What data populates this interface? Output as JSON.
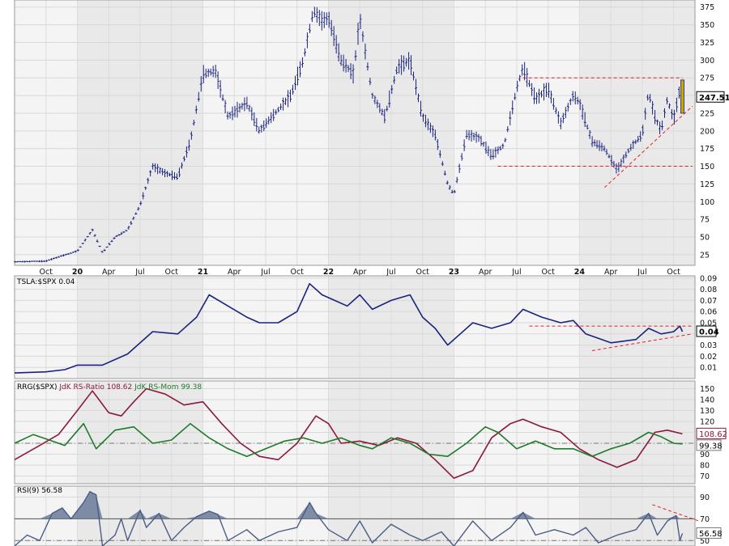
{
  "chart_data": [
    {
      "type": "bar",
      "subtype": "ohlc",
      "panel": "price",
      "x_tick_labels": [
        "Oct",
        "20",
        "Apr",
        "Jul",
        "Oct",
        "21",
        "Apr",
        "Jul",
        "Oct",
        "22",
        "Apr",
        "Jul",
        "Oct",
        "23",
        "Apr",
        "Jul",
        "Oct",
        "24",
        "Apr",
        "Jul",
        "Oct"
      ],
      "x_tick_months": [
        2019.75,
        2020.0,
        2020.25,
        2020.5,
        2020.75,
        2021.0,
        2021.25,
        2021.5,
        2021.75,
        2022.0,
        2022.25,
        2022.5,
        2022.75,
        2023.0,
        2023.25,
        2023.5,
        2023.75,
        2024.0,
        2024.25,
        2024.5,
        2024.75
      ],
      "y_ticks": [
        25,
        50,
        75,
        100,
        125,
        150,
        175,
        200,
        225,
        250,
        275,
        300,
        325,
        350,
        375
      ],
      "ylim": [
        10,
        385
      ],
      "last_value_label": "247.51",
      "close_series": [
        {
          "t": 2019.5,
          "v": 15
        },
        {
          "t": 2019.75,
          "v": 16
        },
        {
          "t": 2019.85,
          "v": 22
        },
        {
          "t": 2020.0,
          "v": 30
        },
        {
          "t": 2020.08,
          "v": 50
        },
        {
          "t": 2020.12,
          "v": 60
        },
        {
          "t": 2020.2,
          "v": 28
        },
        {
          "t": 2020.3,
          "v": 50
        },
        {
          "t": 2020.4,
          "v": 60
        },
        {
          "t": 2020.5,
          "v": 95
        },
        {
          "t": 2020.6,
          "v": 150
        },
        {
          "t": 2020.7,
          "v": 140
        },
        {
          "t": 2020.8,
          "v": 135
        },
        {
          "t": 2020.9,
          "v": 185
        },
        {
          "t": 2021.0,
          "v": 280
        },
        {
          "t": 2021.1,
          "v": 285
        },
        {
          "t": 2021.2,
          "v": 220
        },
        {
          "t": 2021.35,
          "v": 240
        },
        {
          "t": 2021.45,
          "v": 200
        },
        {
          "t": 2021.6,
          "v": 230
        },
        {
          "t": 2021.7,
          "v": 250
        },
        {
          "t": 2021.8,
          "v": 300
        },
        {
          "t": 2021.88,
          "v": 370
        },
        {
          "t": 2021.95,
          "v": 355
        },
        {
          "t": 2022.0,
          "v": 360
        },
        {
          "t": 2022.1,
          "v": 300
        },
        {
          "t": 2022.2,
          "v": 280
        },
        {
          "t": 2022.25,
          "v": 360
        },
        {
          "t": 2022.35,
          "v": 250
        },
        {
          "t": 2022.45,
          "v": 220
        },
        {
          "t": 2022.55,
          "v": 290
        },
        {
          "t": 2022.65,
          "v": 300
        },
        {
          "t": 2022.75,
          "v": 220
        },
        {
          "t": 2022.85,
          "v": 195
        },
        {
          "t": 2022.95,
          "v": 125
        },
        {
          "t": 2023.0,
          "v": 110
        },
        {
          "t": 2023.1,
          "v": 195
        },
        {
          "t": 2023.2,
          "v": 190
        },
        {
          "t": 2023.3,
          "v": 165
        },
        {
          "t": 2023.4,
          "v": 180
        },
        {
          "t": 2023.5,
          "v": 260
        },
        {
          "t": 2023.55,
          "v": 290
        },
        {
          "t": 2023.65,
          "v": 245
        },
        {
          "t": 2023.75,
          "v": 260
        },
        {
          "t": 2023.85,
          "v": 210
        },
        {
          "t": 2023.95,
          "v": 250
        },
        {
          "t": 2024.0,
          "v": 240
        },
        {
          "t": 2024.1,
          "v": 185
        },
        {
          "t": 2024.2,
          "v": 175
        },
        {
          "t": 2024.3,
          "v": 145
        },
        {
          "t": 2024.4,
          "v": 175
        },
        {
          "t": 2024.5,
          "v": 195
        },
        {
          "t": 2024.55,
          "v": 255
        },
        {
          "t": 2024.6,
          "v": 220
        },
        {
          "t": 2024.65,
          "v": 200
        },
        {
          "t": 2024.7,
          "v": 245
        },
        {
          "t": 2024.75,
          "v": 215
        },
        {
          "t": 2024.8,
          "v": 260
        },
        {
          "t": 2024.82,
          "v": 247.51
        }
      ],
      "annotations": [
        {
          "kind": "horizontal-dashed",
          "value": 275,
          "from": 2023.55,
          "to": 2024.82
        },
        {
          "kind": "horizontal-dashed",
          "value": 150,
          "from": 2023.35,
          "to": 2024.9
        },
        {
          "kind": "trendline-dashed",
          "from": [
            2024.2,
            120
          ],
          "to": [
            2024.9,
            235
          ]
        }
      ],
      "grid": true
    },
    {
      "type": "line",
      "panel": "ratio",
      "title": "TSLA:$SPX 0.04",
      "y_ticks": [
        0.01,
        0.02,
        0.03,
        0.04,
        0.05,
        0.06,
        0.07,
        0.08,
        0.09
      ],
      "ylim": [
        0.0,
        0.092
      ],
      "last_value_label": "0.04",
      "series": [
        {
          "t": 2019.5,
          "v": 0.005
        },
        {
          "t": 2019.75,
          "v": 0.006
        },
        {
          "t": 2019.9,
          "v": 0.008
        },
        {
          "t": 2020.0,
          "v": 0.012
        },
        {
          "t": 2020.2,
          "v": 0.012
        },
        {
          "t": 2020.4,
          "v": 0.022
        },
        {
          "t": 2020.6,
          "v": 0.042
        },
        {
          "t": 2020.8,
          "v": 0.04
        },
        {
          "t": 2020.95,
          "v": 0.055
        },
        {
          "t": 2021.05,
          "v": 0.075
        },
        {
          "t": 2021.2,
          "v": 0.065
        },
        {
          "t": 2021.35,
          "v": 0.055
        },
        {
          "t": 2021.45,
          "v": 0.05
        },
        {
          "t": 2021.6,
          "v": 0.05
        },
        {
          "t": 2021.75,
          "v": 0.06
        },
        {
          "t": 2021.85,
          "v": 0.085
        },
        {
          "t": 2021.95,
          "v": 0.075
        },
        {
          "t": 2022.05,
          "v": 0.07
        },
        {
          "t": 2022.15,
          "v": 0.065
        },
        {
          "t": 2022.25,
          "v": 0.075
        },
        {
          "t": 2022.35,
          "v": 0.062
        },
        {
          "t": 2022.5,
          "v": 0.07
        },
        {
          "t": 2022.65,
          "v": 0.075
        },
        {
          "t": 2022.75,
          "v": 0.055
        },
        {
          "t": 2022.85,
          "v": 0.045
        },
        {
          "t": 2022.95,
          "v": 0.03
        },
        {
          "t": 2023.05,
          "v": 0.04
        },
        {
          "t": 2023.15,
          "v": 0.05
        },
        {
          "t": 2023.3,
          "v": 0.045
        },
        {
          "t": 2023.45,
          "v": 0.05
        },
        {
          "t": 2023.55,
          "v": 0.062
        },
        {
          "t": 2023.7,
          "v": 0.055
        },
        {
          "t": 2023.85,
          "v": 0.05
        },
        {
          "t": 2023.95,
          "v": 0.052
        },
        {
          "t": 2024.05,
          "v": 0.04
        },
        {
          "t": 2024.25,
          "v": 0.032
        },
        {
          "t": 2024.45,
          "v": 0.035
        },
        {
          "t": 2024.55,
          "v": 0.045
        },
        {
          "t": 2024.65,
          "v": 0.04
        },
        {
          "t": 2024.75,
          "v": 0.042
        },
        {
          "t": 2024.8,
          "v": 0.047
        },
        {
          "t": 2024.82,
          "v": 0.042
        }
      ],
      "annotations": [
        {
          "kind": "horizontal-dashed",
          "value": 0.047,
          "from": 2023.6,
          "to": 2024.9
        },
        {
          "kind": "trendline-dashed",
          "from": [
            2024.1,
            0.025
          ],
          "to": [
            2024.9,
            0.04
          ]
        }
      ],
      "grid": true
    },
    {
      "type": "line",
      "panel": "rrg",
      "title": "RRG($SPX) JdK RS-Ratio 108.62 JdK RS-Mom 99.38",
      "y_ticks": [
        70,
        80,
        90,
        100,
        110,
        120,
        130,
        140,
        150
      ],
      "ylim": [
        63,
        157
      ],
      "reference_line": 100,
      "series": [
        {
          "name": "JdK RS-Ratio 108.62",
          "color": "#8b1a3a",
          "last_value_label": "108.62",
          "points": [
            {
              "t": 2019.5,
              "v": 85
            },
            {
              "t": 2019.7,
              "v": 98
            },
            {
              "t": 2019.85,
              "v": 108
            },
            {
              "t": 2020.0,
              "v": 130
            },
            {
              "t": 2020.12,
              "v": 148
            },
            {
              "t": 2020.25,
              "v": 128
            },
            {
              "t": 2020.35,
              "v": 125
            },
            {
              "t": 2020.45,
              "v": 138
            },
            {
              "t": 2020.55,
              "v": 150
            },
            {
              "t": 2020.7,
              "v": 145
            },
            {
              "t": 2020.85,
              "v": 135
            },
            {
              "t": 2021.0,
              "v": 138
            },
            {
              "t": 2021.15,
              "v": 118
            },
            {
              "t": 2021.3,
              "v": 100
            },
            {
              "t": 2021.45,
              "v": 88
            },
            {
              "t": 2021.6,
              "v": 85
            },
            {
              "t": 2021.75,
              "v": 100
            },
            {
              "t": 2021.9,
              "v": 125
            },
            {
              "t": 2022.0,
              "v": 118
            },
            {
              "t": 2022.1,
              "v": 100
            },
            {
              "t": 2022.25,
              "v": 102
            },
            {
              "t": 2022.4,
              "v": 98
            },
            {
              "t": 2022.55,
              "v": 105
            },
            {
              "t": 2022.7,
              "v": 100
            },
            {
              "t": 2022.85,
              "v": 85
            },
            {
              "t": 2023.0,
              "v": 68
            },
            {
              "t": 2023.15,
              "v": 75
            },
            {
              "t": 2023.3,
              "v": 105
            },
            {
              "t": 2023.45,
              "v": 118
            },
            {
              "t": 2023.55,
              "v": 122
            },
            {
              "t": 2023.7,
              "v": 115
            },
            {
              "t": 2023.85,
              "v": 110
            },
            {
              "t": 2024.0,
              "v": 95
            },
            {
              "t": 2024.15,
              "v": 85
            },
            {
              "t": 2024.3,
              "v": 78
            },
            {
              "t": 2024.45,
              "v": 85
            },
            {
              "t": 2024.6,
              "v": 110
            },
            {
              "t": 2024.7,
              "v": 112
            },
            {
              "t": 2024.82,
              "v": 108.62
            }
          ]
        },
        {
          "name": "JdK RS-Mom 99.38",
          "color": "#1f7a2a",
          "last_value_label": "99.38",
          "points": [
            {
              "t": 2019.5,
              "v": 100
            },
            {
              "t": 2019.65,
              "v": 108
            },
            {
              "t": 2019.8,
              "v": 102
            },
            {
              "t": 2019.9,
              "v": 98
            },
            {
              "t": 2020.05,
              "v": 118
            },
            {
              "t": 2020.15,
              "v": 95
            },
            {
              "t": 2020.3,
              "v": 112
            },
            {
              "t": 2020.45,
              "v": 115
            },
            {
              "t": 2020.6,
              "v": 100
            },
            {
              "t": 2020.75,
              "v": 103
            },
            {
              "t": 2020.9,
              "v": 118
            },
            {
              "t": 2021.05,
              "v": 105
            },
            {
              "t": 2021.2,
              "v": 95
            },
            {
              "t": 2021.35,
              "v": 88
            },
            {
              "t": 2021.5,
              "v": 95
            },
            {
              "t": 2021.65,
              "v": 102
            },
            {
              "t": 2021.8,
              "v": 105
            },
            {
              "t": 2021.95,
              "v": 100
            },
            {
              "t": 2022.1,
              "v": 105
            },
            {
              "t": 2022.25,
              "v": 98
            },
            {
              "t": 2022.35,
              "v": 95
            },
            {
              "t": 2022.5,
              "v": 105
            },
            {
              "t": 2022.65,
              "v": 100
            },
            {
              "t": 2022.8,
              "v": 90
            },
            {
              "t": 2022.95,
              "v": 88
            },
            {
              "t": 2023.1,
              "v": 100
            },
            {
              "t": 2023.25,
              "v": 115
            },
            {
              "t": 2023.35,
              "v": 110
            },
            {
              "t": 2023.5,
              "v": 95
            },
            {
              "t": 2023.65,
              "v": 102
            },
            {
              "t": 2023.8,
              "v": 95
            },
            {
              "t": 2023.95,
              "v": 95
            },
            {
              "t": 2024.1,
              "v": 88
            },
            {
              "t": 2024.25,
              "v": 95
            },
            {
              "t": 2024.4,
              "v": 100
            },
            {
              "t": 2024.55,
              "v": 110
            },
            {
              "t": 2024.65,
              "v": 106
            },
            {
              "t": 2024.75,
              "v": 100
            },
            {
              "t": 2024.82,
              "v": 99.38
            }
          ]
        }
      ],
      "grid": true
    },
    {
      "type": "area",
      "panel": "rsi",
      "title": "RSI(9) 56.58",
      "y_ticks": [
        50,
        70,
        90
      ],
      "ylim": [
        45,
        100
      ],
      "overbought": 70,
      "last_value_label": "56.58",
      "series": [
        {
          "t": 2019.5,
          "v": 45
        },
        {
          "t": 2019.6,
          "v": 55
        },
        {
          "t": 2019.7,
          "v": 50
        },
        {
          "t": 2019.8,
          "v": 75
        },
        {
          "t": 2019.88,
          "v": 80
        },
        {
          "t": 2019.95,
          "v": 70
        },
        {
          "t": 2020.05,
          "v": 85
        },
        {
          "t": 2020.1,
          "v": 95
        },
        {
          "t": 2020.15,
          "v": 92
        },
        {
          "t": 2020.2,
          "v": 45
        },
        {
          "t": 2020.3,
          "v": 55
        },
        {
          "t": 2020.35,
          "v": 70
        },
        {
          "t": 2020.4,
          "v": 50
        },
        {
          "t": 2020.5,
          "v": 78
        },
        {
          "t": 2020.55,
          "v": 62
        },
        {
          "t": 2020.65,
          "v": 75
        },
        {
          "t": 2020.75,
          "v": 50
        },
        {
          "t": 2020.85,
          "v": 62
        },
        {
          "t": 2020.95,
          "v": 72
        },
        {
          "t": 2021.05,
          "v": 77
        },
        {
          "t": 2021.12,
          "v": 74
        },
        {
          "t": 2021.2,
          "v": 50
        },
        {
          "t": 2021.35,
          "v": 60
        },
        {
          "t": 2021.45,
          "v": 50
        },
        {
          "t": 2021.6,
          "v": 58
        },
        {
          "t": 2021.75,
          "v": 62
        },
        {
          "t": 2021.85,
          "v": 85
        },
        {
          "t": 2021.9,
          "v": 75
        },
        {
          "t": 2022.0,
          "v": 60
        },
        {
          "t": 2022.15,
          "v": 50
        },
        {
          "t": 2022.25,
          "v": 68
        },
        {
          "t": 2022.35,
          "v": 48
        },
        {
          "t": 2022.5,
          "v": 65
        },
        {
          "t": 2022.65,
          "v": 55
        },
        {
          "t": 2022.75,
          "v": 50
        },
        {
          "t": 2022.9,
          "v": 58
        },
        {
          "t": 2023.0,
          "v": 45
        },
        {
          "t": 2023.15,
          "v": 68
        },
        {
          "t": 2023.3,
          "v": 50
        },
        {
          "t": 2023.45,
          "v": 62
        },
        {
          "t": 2023.55,
          "v": 76
        },
        {
          "t": 2023.65,
          "v": 55
        },
        {
          "t": 2023.8,
          "v": 60
        },
        {
          "t": 2023.95,
          "v": 55
        },
        {
          "t": 2024.05,
          "v": 62
        },
        {
          "t": 2024.15,
          "v": 48
        },
        {
          "t": 2024.3,
          "v": 55
        },
        {
          "t": 2024.45,
          "v": 60
        },
        {
          "t": 2024.55,
          "v": 75
        },
        {
          "t": 2024.62,
          "v": 55
        },
        {
          "t": 2024.7,
          "v": 68
        },
        {
          "t": 2024.77,
          "v": 73
        },
        {
          "t": 2024.8,
          "v": 50
        },
        {
          "t": 2024.82,
          "v": 56.58
        }
      ],
      "annotations": [
        {
          "kind": "trendline-dashed",
          "from": [
            2024.58,
            83
          ],
          "to": [
            2024.95,
            68
          ]
        }
      ],
      "grid": true
    }
  ]
}
